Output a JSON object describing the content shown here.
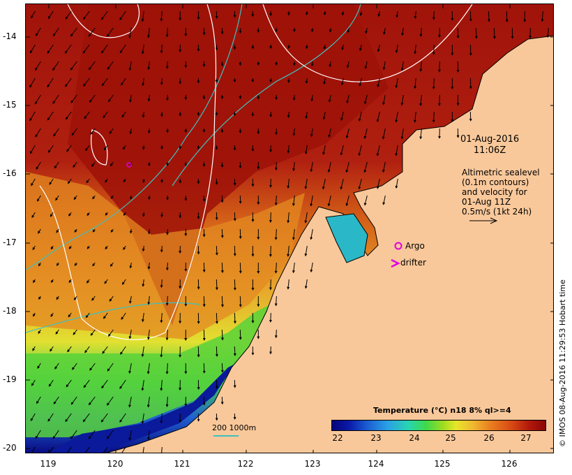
{
  "map": {
    "y_axis_labels": [
      "-14",
      "-15",
      "-16",
      "-17",
      "-18",
      "-19",
      "-20"
    ],
    "x_axis_labels": [
      "119",
      "120",
      "121",
      "122",
      "123",
      "124",
      "125",
      "126"
    ],
    "date": "01-Aug-2016",
    "time": "11:06Z",
    "altimetry_lines": [
      "Altimetric sealevel",
      "(0.1m contours)",
      "and velocity for",
      "01-Aug 11Z",
      "0.5m/s (1kt 24h)"
    ],
    "legend_argo": "Argo",
    "legend_drifter": "drifter",
    "colorbar_title": "Temperature (°C) n18 8% ql>=4",
    "colorbar_ticks": [
      "22",
      "23",
      "24",
      "25",
      "26",
      "27"
    ],
    "scale_label": "200  1000m",
    "credit": "© IMOS 08-Aug-2016 11:29:53 Hobart time",
    "colors": {
      "land": "#f9c89a",
      "sst_warm": "#a51208",
      "sst_mid": "#e07a1a",
      "sst_cool": "#2ad850",
      "sst_cold": "#0a1a9a",
      "contour": "#ffffff",
      "isobath": "#40c0c0",
      "argo": "#e000e0"
    },
    "icons": [
      "argo-circle-icon",
      "drifter-chevron-icon",
      "velocity-arrow-icon"
    ]
  }
}
